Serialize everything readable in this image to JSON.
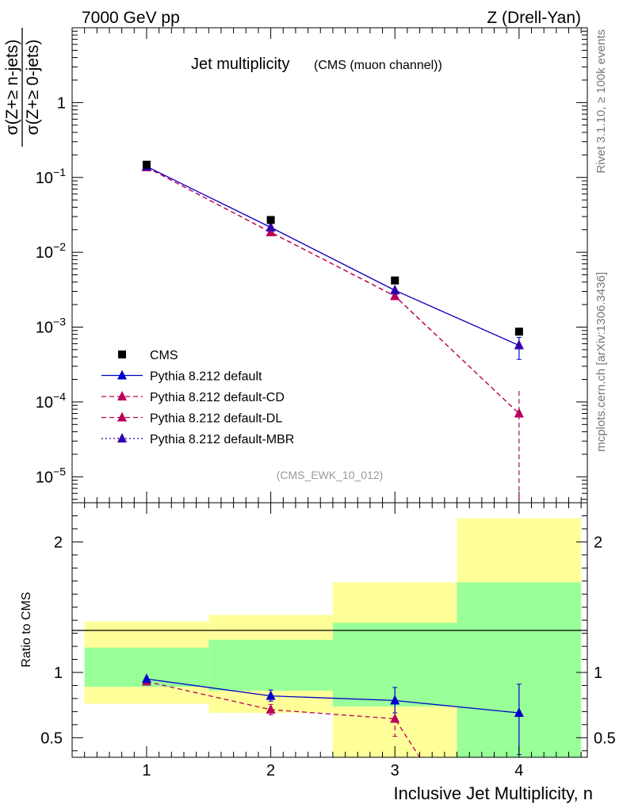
{
  "header": {
    "left": "7000 GeV pp",
    "right": "Z (Drell-Yan)"
  },
  "side_labels": {
    "rivet": "Rivet 3.1.10, ≥ 100k events",
    "mcplots": "mcplots.cern.ch [arXiv:1306.3436]"
  },
  "chart_data": [
    {
      "type": "line",
      "title": "Jet multiplicity",
      "subtitle": "(CMS (muon channel))",
      "analysis_tag": "(CMS_EWK_10_012)",
      "ylabel_numerator": "σ(Z+≥ n-jets)",
      "ylabel_denominator": "σ(Z+≥ 0-jets)",
      "yscale": "log",
      "ylim": [
        4.5e-06,
        10
      ],
      "xlim": [
        0.4,
        4.55
      ],
      "yticks": [
        {
          "v": 1,
          "label": "1"
        },
        {
          "v": 0.1,
          "mant": "10",
          "exp": "−1"
        },
        {
          "v": 0.01,
          "mant": "10",
          "exp": "−2"
        },
        {
          "v": 0.001,
          "mant": "10",
          "exp": "−3"
        },
        {
          "v": 0.0001,
          "mant": "10",
          "exp": "−4"
        },
        {
          "v": 1e-05,
          "mant": "10",
          "exp": "−5"
        }
      ],
      "legend_position": "bottom-left",
      "x": [
        1,
        2,
        3,
        4
      ],
      "series": [
        {
          "name": "CMS",
          "color": "#000000",
          "marker": "square",
          "line": "none",
          "values": [
            0.148,
            0.027,
            0.0042,
            0.00087
          ]
        },
        {
          "name": "Pythia 8.212 default",
          "color": "#0000cc",
          "marker": "triangle",
          "line": "solid",
          "values": [
            0.14,
            0.0215,
            0.0031,
            0.00057
          ],
          "err_low": [
            0,
            0,
            0,
            0.00037
          ],
          "err_high": [
            0,
            0,
            0,
            0.00073
          ]
        },
        {
          "name": "Pythia 8.212 default-CD",
          "color": "#b8005e",
          "marker": "triangle",
          "line": "dashed",
          "values": [
            0.137,
            0.0185,
            0.0026,
            7e-05
          ],
          "err_low": [
            0,
            0,
            0,
            4.5e-06
          ],
          "err_high": [
            0,
            0,
            0,
            0.00014
          ]
        },
        {
          "name": "Pythia 8.212 default-DL",
          "color": "#b8005e",
          "marker": "triangle",
          "line": "dashed",
          "values": [
            0.137,
            0.0185,
            0.0026,
            7e-05
          ]
        },
        {
          "name": "Pythia 8.212 default-MBR",
          "color": "#3300aa",
          "marker": "triangle",
          "line": "dotted",
          "values": [
            0.14,
            0.0215,
            0.0031,
            0.00057
          ]
        }
      ]
    },
    {
      "type": "line",
      "ylabel": "Ratio to CMS",
      "xlabel": "Inclusive Jet Multiplicity, n",
      "ylim": [
        0.35,
        2.3
      ],
      "xlim": [
        0.4,
        4.55
      ],
      "yticks": [
        0.5,
        1,
        2
      ],
      "xticks": [
        1,
        2,
        3,
        4
      ],
      "bands": [
        {
          "x0": 0.5,
          "x1": 1.5,
          "yellow": [
            0.76,
            1.39
          ],
          "green": [
            0.89,
            1.19
          ]
        },
        {
          "x0": 1.5,
          "x1": 2.5,
          "yellow": [
            0.69,
            1.44
          ],
          "green": [
            0.86,
            1.25
          ]
        },
        {
          "x0": 2.5,
          "x1": 3.5,
          "yellow": [
            0.35,
            1.69
          ],
          "green": [
            0.74,
            1.38
          ]
        },
        {
          "x0": 3.5,
          "x1": 4.5,
          "yellow": [
            0.35,
            2.18
          ],
          "green": [
            0.35,
            1.69
          ]
        }
      ],
      "band_colors": {
        "yellow": "#ffff99",
        "green": "#99ff99"
      },
      "series": [
        {
          "name": "Pythia 8.212 default",
          "color": "#0000cc",
          "line": "solid",
          "x": [
            1,
            2,
            3,
            4
          ],
          "values": [
            0.95,
            0.82,
            0.785,
            0.69
          ],
          "err_low": [
            0,
            0.78,
            0.69,
            0.37
          ],
          "err_high": [
            0,
            0.865,
            0.885,
            0.91
          ]
        },
        {
          "name": "Pythia 8.212 default-CD",
          "color": "#b8005e",
          "line": "dashed",
          "x": [
            1,
            2,
            3,
            3.2
          ],
          "values": [
            0.93,
            0.715,
            0.645,
            0.35
          ],
          "markers": [
            true,
            true,
            true,
            false
          ],
          "err_low": [
            0,
            0.675,
            0.51,
            0
          ],
          "err_high": [
            0,
            0.755,
            0.775,
            0
          ]
        }
      ]
    }
  ]
}
